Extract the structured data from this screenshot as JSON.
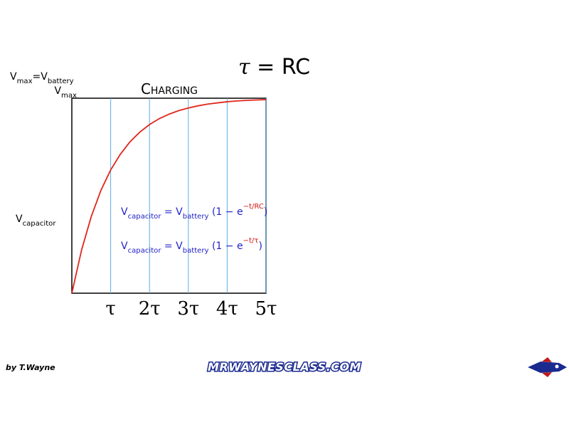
{
  "chart_data": {
    "type": "line",
    "title": "Charging",
    "x": [
      0,
      0.25,
      0.5,
      0.75,
      1,
      1.25,
      1.5,
      1.75,
      2,
      2.25,
      2.5,
      2.75,
      3,
      3.25,
      3.5,
      3.75,
      4,
      4.25,
      4.5,
      4.75,
      5
    ],
    "series": [
      {
        "color": "#e0261b",
        "values": [
          0,
          0.221,
          0.393,
          0.528,
          0.632,
          0.713,
          0.777,
          0.826,
          0.865,
          0.895,
          0.918,
          0.936,
          0.95,
          0.961,
          0.97,
          0.976,
          0.982,
          0.986,
          0.989,
          0.991,
          0.993
        ]
      }
    ],
    "xlim": [
      0,
      5
    ],
    "ylim": [
      0,
      1
    ],
    "xticks": [
      {
        "value": 1,
        "label": "τ"
      },
      {
        "value": 2,
        "label": "2τ"
      },
      {
        "value": 3,
        "label": "3τ"
      },
      {
        "value": 4,
        "label": "4τ"
      },
      {
        "value": 5,
        "label": "5τ"
      }
    ],
    "grid": true,
    "grid_color": "#5aaee6",
    "annotations": [
      {
        "color": "#000000",
        "segments": [
          {
            "text": "V"
          },
          {
            "text": "max",
            "sub": true
          },
          {
            "text": "=V"
          },
          {
            "text": "battery",
            "sub": true
          }
        ]
      },
      {
        "color": "#000000",
        "segments": [
          {
            "text": "V"
          },
          {
            "text": "max",
            "sub": true
          }
        ]
      },
      {
        "color": "#000000",
        "segments": [
          {
            "text": "V"
          },
          {
            "text": "capacitor",
            "sub": true
          }
        ]
      },
      {
        "color": "#2323c8",
        "segments": [
          {
            "text": "V"
          },
          {
            "text": "capacitor",
            "sub": true
          },
          {
            "text": " = V"
          },
          {
            "text": "battery",
            "sub": true
          },
          {
            "text": " (1 − e"
          },
          {
            "text": "−t/RC",
            "sup": true,
            "color": "#d01818"
          },
          {
            "text": ")"
          }
        ]
      },
      {
        "color": "#2323c8",
        "segments": [
          {
            "text": "V"
          },
          {
            "text": "capacitor",
            "sub": true
          },
          {
            "text": " = V"
          },
          {
            "text": "battery",
            "sub": true
          },
          {
            "text": " (1 − e"
          },
          {
            "text": "−t/τ",
            "sup": true,
            "color": "#d01818"
          },
          {
            "text": ")"
          }
        ]
      }
    ]
  },
  "header": {
    "segments": [
      {
        "text": "τ",
        "italic": true
      },
      {
        "text": " = RC"
      }
    ]
  },
  "footer": {
    "author": "by T.Wayne",
    "site": "MRWAYNESCLASS.COM"
  }
}
